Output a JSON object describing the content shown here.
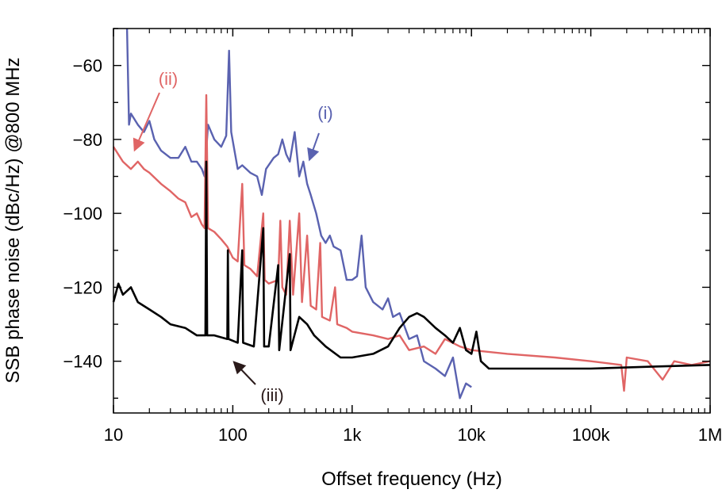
{
  "chart_data": {
    "type": "line",
    "xlabel": "Offset frequency (Hz)",
    "ylabel": "SSB phase noise (dBc/Hz) @800 MHz",
    "xscale": "log",
    "xlim": [
      10,
      1000000
    ],
    "ylim": [
      -154,
      -50
    ],
    "xticks": [
      10,
      100,
      1000,
      10000,
      100000,
      1000000
    ],
    "xtick_labels": [
      "10",
      "100",
      "1k",
      "10k",
      "100k",
      "1M"
    ],
    "yticks": [
      -60,
      -80,
      -100,
      -120,
      -140
    ],
    "ytick_labels": [
      "−60",
      "−80",
      "−100",
      "−120",
      "−140"
    ],
    "grid": false,
    "legend": "none",
    "series": [
      {
        "name": "(i)",
        "color": "#5a62b0",
        "points": [
          [
            13,
            -50
          ],
          [
            13.5,
            -76
          ],
          [
            14,
            -73
          ],
          [
            16,
            -76
          ],
          [
            18,
            -78
          ],
          [
            20,
            -75
          ],
          [
            22,
            -80
          ],
          [
            25,
            -83
          ],
          [
            30,
            -85
          ],
          [
            35,
            -85
          ],
          [
            40,
            -82
          ],
          [
            45,
            -86
          ],
          [
            50,
            -86
          ],
          [
            55,
            -88
          ],
          [
            58,
            -90
          ],
          [
            62,
            -76
          ],
          [
            70,
            -80
          ],
          [
            80,
            -82
          ],
          [
            88,
            -79
          ],
          [
            93,
            -56
          ],
          [
            97,
            -78
          ],
          [
            110,
            -88
          ],
          [
            120,
            -87
          ],
          [
            140,
            -89
          ],
          [
            160,
            -90
          ],
          [
            175,
            -95
          ],
          [
            190,
            -88
          ],
          [
            220,
            -85
          ],
          [
            240,
            -84
          ],
          [
            260,
            -80
          ],
          [
            280,
            -84
          ],
          [
            300,
            -86
          ],
          [
            330,
            -78
          ],
          [
            360,
            -90
          ],
          [
            390,
            -86
          ],
          [
            420,
            -92
          ],
          [
            450,
            -95
          ],
          [
            500,
            -100
          ],
          [
            550,
            -106
          ],
          [
            600,
            -108
          ],
          [
            650,
            -106
          ],
          [
            700,
            -109
          ],
          [
            800,
            -110
          ],
          [
            900,
            -118
          ],
          [
            1000,
            -118
          ],
          [
            1100,
            -117
          ],
          [
            1200,
            -106
          ],
          [
            1300,
            -120
          ],
          [
            1500,
            -124
          ],
          [
            1800,
            -126
          ],
          [
            2000,
            -123
          ],
          [
            2200,
            -128
          ],
          [
            2500,
            -127
          ],
          [
            3000,
            -134
          ],
          [
            3500,
            -133
          ],
          [
            4000,
            -140
          ],
          [
            5000,
            -142
          ],
          [
            6000,
            -144
          ],
          [
            7000,
            -139
          ],
          [
            8000,
            -150
          ],
          [
            9000,
            -146
          ],
          [
            10000,
            -147
          ]
        ]
      },
      {
        "name": "(ii)",
        "color": "#e06565",
        "points": [
          [
            10,
            -82
          ],
          [
            12,
            -86
          ],
          [
            14,
            -88
          ],
          [
            16,
            -86
          ],
          [
            18,
            -88
          ],
          [
            20,
            -89
          ],
          [
            25,
            -92
          ],
          [
            30,
            -94
          ],
          [
            35,
            -96
          ],
          [
            40,
            -97
          ],
          [
            45,
            -101
          ],
          [
            50,
            -100
          ],
          [
            55,
            -103
          ],
          [
            58,
            -104
          ],
          [
            60,
            -68
          ],
          [
            62,
            -104
          ],
          [
            70,
            -105
          ],
          [
            80,
            -107
          ],
          [
            90,
            -109
          ],
          [
            100,
            -112
          ],
          [
            110,
            -113
          ],
          [
            120,
            -92
          ],
          [
            125,
            -114
          ],
          [
            140,
            -115
          ],
          [
            160,
            -117
          ],
          [
            180,
            -100
          ],
          [
            185,
            -118
          ],
          [
            200,
            -119
          ],
          [
            240,
            -118
          ],
          [
            250,
            -102
          ],
          [
            260,
            -120
          ],
          [
            280,
            -122
          ],
          [
            300,
            -102
          ],
          [
            320,
            -122
          ],
          [
            360,
            -100
          ],
          [
            380,
            -124
          ],
          [
            420,
            -106
          ],
          [
            450,
            -125
          ],
          [
            500,
            -126
          ],
          [
            540,
            -108
          ],
          [
            560,
            -128
          ],
          [
            650,
            -129
          ],
          [
            720,
            -120
          ],
          [
            750,
            -130
          ],
          [
            900,
            -131
          ],
          [
            1000,
            -132
          ],
          [
            1500,
            -133
          ],
          [
            2000,
            -134
          ],
          [
            2500,
            -133
          ],
          [
            3000,
            -137
          ],
          [
            4000,
            -136
          ],
          [
            5000,
            -138
          ],
          [
            6000,
            -134
          ],
          [
            8000,
            -136
          ],
          [
            10000,
            -137
          ],
          [
            20000,
            -138
          ],
          [
            50000,
            -139
          ],
          [
            100000,
            -140
          ],
          [
            180000,
            -141
          ],
          [
            190000,
            -148
          ],
          [
            200000,
            -139
          ],
          [
            300000,
            -140
          ],
          [
            400000,
            -145
          ],
          [
            500000,
            -140
          ],
          [
            700000,
            -141
          ],
          [
            1000000,
            -140
          ]
        ]
      },
      {
        "name": "(iii)",
        "color": "#000000",
        "points": [
          [
            10,
            -124
          ],
          [
            11,
            -119
          ],
          [
            12,
            -122
          ],
          [
            14,
            -120
          ],
          [
            16,
            -124
          ],
          [
            20,
            -126
          ],
          [
            25,
            -128
          ],
          [
            30,
            -130
          ],
          [
            40,
            -131
          ],
          [
            50,
            -133
          ],
          [
            59,
            -133
          ],
          [
            60,
            -86
          ],
          [
            61,
            -133
          ],
          [
            70,
            -133
          ],
          [
            90,
            -134
          ],
          [
            91,
            -110
          ],
          [
            92,
            -134
          ],
          [
            110,
            -135
          ],
          [
            120,
            -110
          ],
          [
            122,
            -135
          ],
          [
            150,
            -136
          ],
          [
            180,
            -104
          ],
          [
            183,
            -136
          ],
          [
            200,
            -136
          ],
          [
            240,
            -114
          ],
          [
            245,
            -137
          ],
          [
            300,
            -111
          ],
          [
            305,
            -137
          ],
          [
            360,
            -128
          ],
          [
            420,
            -130
          ],
          [
            480,
            -133
          ],
          [
            600,
            -136
          ],
          [
            800,
            -139
          ],
          [
            1000,
            -139
          ],
          [
            1500,
            -138
          ],
          [
            2000,
            -136
          ],
          [
            2500,
            -131
          ],
          [
            3000,
            -128
          ],
          [
            3500,
            -127
          ],
          [
            4000,
            -128
          ],
          [
            5000,
            -131
          ],
          [
            6000,
            -133
          ],
          [
            7000,
            -135
          ],
          [
            8000,
            -131
          ],
          [
            9000,
            -137
          ],
          [
            10000,
            -138
          ],
          [
            11000,
            -132
          ],
          [
            12000,
            -140
          ],
          [
            14000,
            -142
          ],
          [
            20000,
            -142
          ],
          [
            50000,
            -142
          ],
          [
            100000,
            -142
          ],
          [
            300000,
            -141.5
          ],
          [
            1000000,
            -141
          ]
        ]
      }
    ],
    "annotations": [
      {
        "text": "(i)",
        "color": "#5a62b0"
      },
      {
        "text": "(ii)",
        "color": "#e06565"
      },
      {
        "text": "(iii)",
        "color": "#2a1a1a"
      }
    ]
  }
}
